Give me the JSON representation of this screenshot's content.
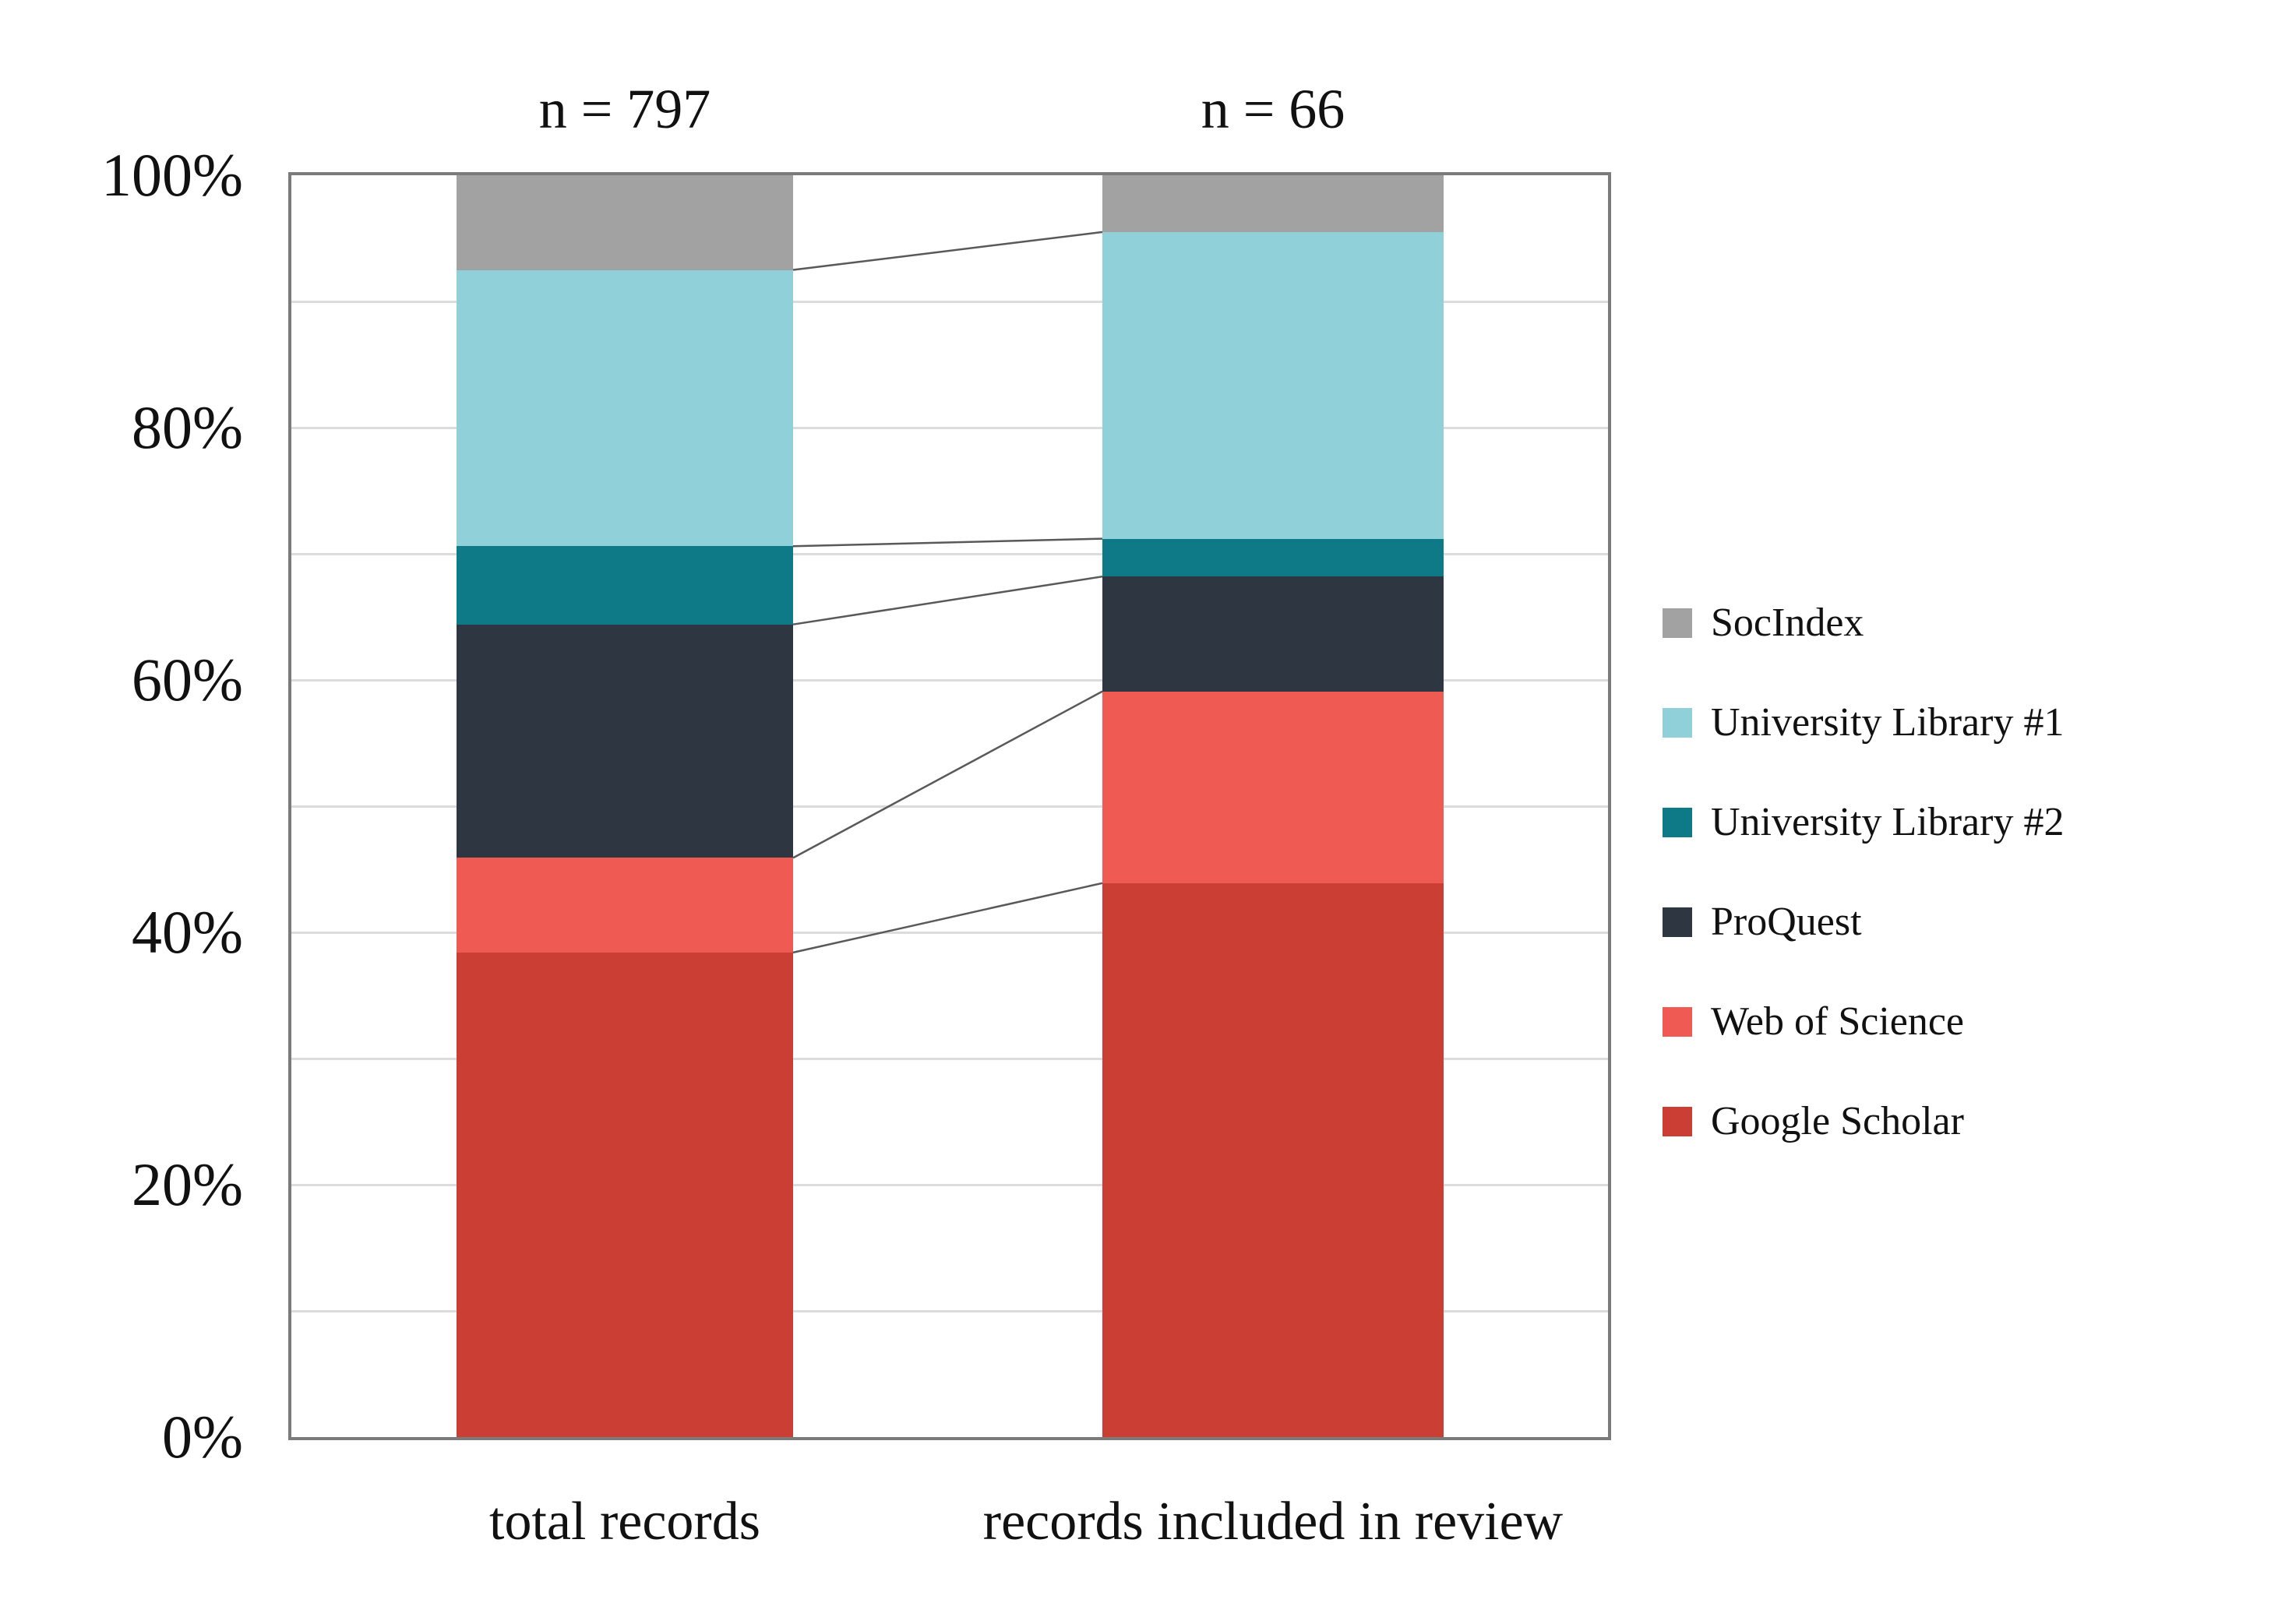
{
  "chart_data": {
    "type": "bar",
    "subtype": "100-percent-stacked-column",
    "title": "",
    "categories": [
      "total records",
      "records included in review"
    ],
    "bar_annotations": [
      "n = 797",
      "n = 66"
    ],
    "series": [
      {
        "name": "Google Scholar",
        "color": "#cb3e33",
        "values": [
          38.4,
          43.9
        ]
      },
      {
        "name": "Web of Science",
        "color": "#ef5a52",
        "values": [
          7.5,
          15.2
        ]
      },
      {
        "name": "ProQuest",
        "color": "#2e3641",
        "values": [
          18.5,
          9.1
        ]
      },
      {
        "name": "University Library #2",
        "color": "#0e7a88",
        "values": [
          6.2,
          3.0
        ]
      },
      {
        "name": "University Library #1",
        "color": "#90d0d8",
        "values": [
          21.9,
          24.3
        ]
      },
      {
        "name": "SocIndex",
        "color": "#a2a2a2",
        "values": [
          7.5,
          4.5
        ]
      }
    ],
    "stack_order": "bottom-to-top",
    "legend_order_top_to_bottom": [
      "SocIndex",
      "University Library #1",
      "University Library #2",
      "ProQuest",
      "Web of Science",
      "Google Scholar"
    ],
    "legend_position": "right",
    "y_axis": {
      "min": 0,
      "max": 100,
      "gridline_step": 10,
      "tick_step": 20,
      "unit": "%"
    },
    "y_ticks": [
      {
        "label": "0%",
        "value": 0
      },
      {
        "label": "20%",
        "value": 20
      },
      {
        "label": "40%",
        "value": 40
      },
      {
        "label": "60%",
        "value": 60
      },
      {
        "label": "80%",
        "value": 80
      },
      {
        "label": "100%",
        "value": 100
      }
    ],
    "grid": true,
    "connector_lines": true
  },
  "colors": {
    "grid": "#dcdcdc",
    "axis_border": "#7b7b7b",
    "connector_line": "#595959",
    "text": "#111111",
    "background": "#ffffff"
  }
}
